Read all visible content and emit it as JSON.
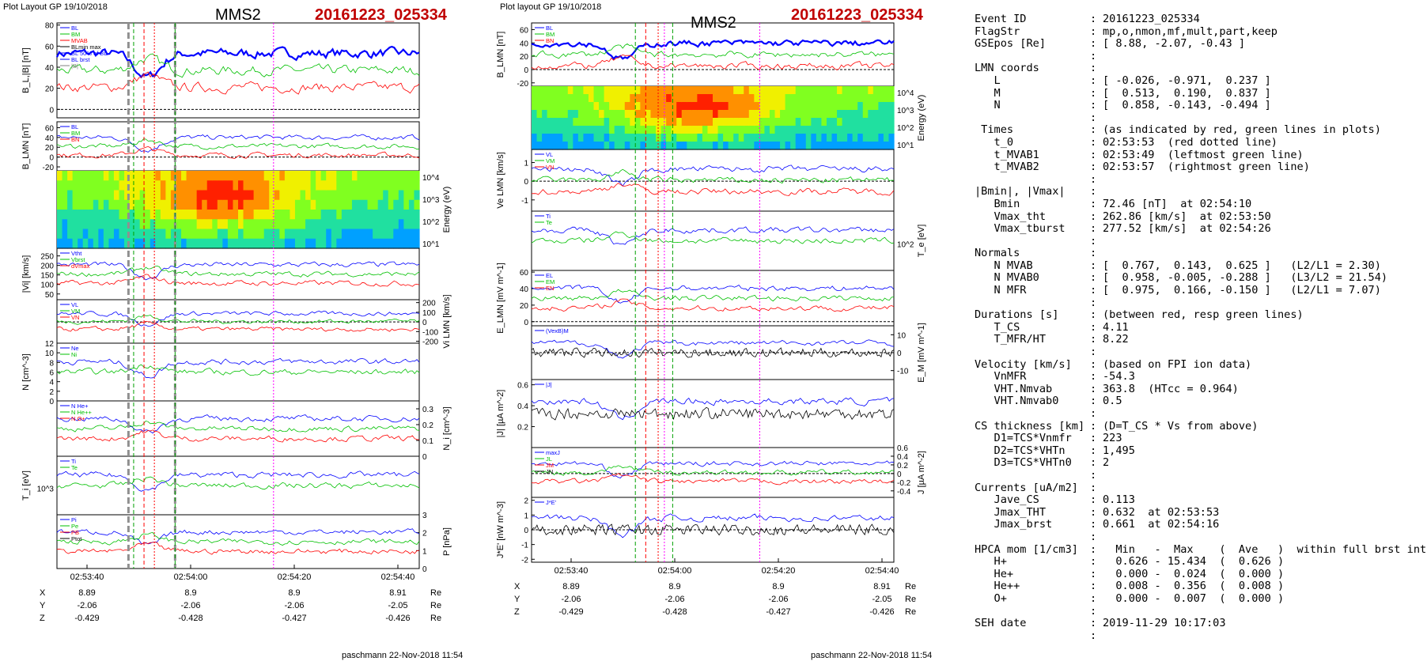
{
  "headers": {
    "left": {
      "title": "Plot Layout GP 19/10/2018",
      "sat": "MMS2",
      "event": "20161223_025334",
      "footer": "paschmann 22-Nov-2018 11:54"
    },
    "middle": {
      "title": "Plot layout GP 19/10/2018",
      "sat": "MMS2",
      "event": "20161223_025334",
      "footer": "paschmann 22-Nov-2018 11:54"
    }
  },
  "chart_data": [
    {
      "type": "line",
      "id": "left-stack",
      "x_ticks": [
        "02:53:40",
        "02:54:00",
        "02:54:20",
        "02:54:40"
      ],
      "markers": {
        "red_dotted": "02:53:53",
        "green_dashed": [
          "02:53:49",
          "02:53:57"
        ],
        "gray_dashed": [
          "02:53:48",
          "02:53:57"
        ],
        "magenta_dotted": "02:54:16"
      },
      "panels": [
        {
          "ylabel": "B_L,|B| [nT]",
          "ylim": [
            -8,
            82
          ],
          "yticks": [
            0,
            20,
            40,
            60,
            80
          ],
          "legend": [
            "BL",
            "BM",
            "MVAB",
            "BLmin max",
            "BL 50% of BL",
            "BL brst",
            "|B|"
          ]
        },
        {
          "ylabel": "B_LMN [nT]",
          "ylim": [
            -28,
            72
          ],
          "yticks": [
            -20,
            0,
            20,
            40,
            60
          ],
          "legend": [
            "BL",
            "BM",
            "BN"
          ]
        },
        {
          "ylabel": "Energy (eV)",
          "type": "heatmap",
          "yticks": [
            "10^4",
            "10^3",
            "10^2",
            "10^1"
          ]
        },
        {
          "ylabel": "|Vi| [km/s]",
          "ylim": [
            20,
            290
          ],
          "yticks": [
            50,
            100,
            150,
            200,
            250
          ],
          "legend": [
            "Vtht",
            "Vbrst",
            "dVmax"
          ]
        },
        {
          "ylabel": "Vi LMN [km/s]",
          "ylim": [
            -220,
            230
          ],
          "yticks": [
            -200,
            -100,
            0,
            100,
            200
          ],
          "legend": [
            "VL",
            "VM",
            "VN"
          ]
        },
        {
          "ylabel": "N [cm^-3]",
          "ylim": [
            0,
            12
          ],
          "yticks": [
            0,
            2,
            4,
            6,
            8,
            10,
            12
          ],
          "legend": [
            "Ne",
            "Ni"
          ]
        },
        {
          "ylabel": "N_i [cm^-3]",
          "ylim": [
            0,
            0.35
          ],
          "yticks": [
            0,
            0.1,
            0.2,
            0.3
          ],
          "legend": [
            "N He+",
            "N He++",
            "N O+"
          ]
        },
        {
          "ylabel": "T_i [eV]",
          "yticks": [
            "10^3"
          ],
          "legend": [
            "Ti",
            "Te"
          ]
        },
        {
          "ylabel": "P [nPa]",
          "ylim": [
            0,
            3
          ],
          "yticks": [
            0,
            1,
            2,
            3
          ],
          "legend": [
            "Pi",
            "Pe",
            "PB",
            "Ptot"
          ]
        }
      ],
      "coords": {
        "X": [
          "8.89",
          "8.9",
          "8.9",
          "8.91"
        ],
        "Y": [
          "-2.06",
          "-2.06",
          "-2.06",
          "-2.05"
        ],
        "Z": [
          "-0.429",
          "-0.428",
          "-0.427",
          "-0.426"
        ],
        "unit": "Re"
      }
    },
    {
      "type": "line",
      "id": "middle-stack",
      "x_ticks": [
        "02:53:40",
        "02:54:00",
        "02:54:20",
        "02:54:40"
      ],
      "panels": [
        {
          "ylabel": "B_LMN [nT]",
          "ylim": [
            -25,
            70
          ],
          "yticks": [
            -20,
            0,
            20,
            40,
            60
          ],
          "legend": [
            "BL",
            "BM",
            "BN"
          ]
        },
        {
          "ylabel": "Energy (eV)",
          "type": "heatmap",
          "yticks": [
            "10^4",
            "10^3",
            "10^2",
            "10^1"
          ]
        },
        {
          "ylabel": "Ve LMN [km/s]",
          "scale": "x10^3",
          "ylim": [
            -1.6,
            1.7
          ],
          "yticks": [
            -1,
            0,
            1
          ],
          "legend": [
            "VL",
            "VM",
            "VN"
          ]
        },
        {
          "ylabel": "T_e [eV]",
          "yticks": [
            "10^2"
          ],
          "legend": [
            "Ti",
            "Te"
          ]
        },
        {
          "ylabel": "E_LMN [mV m^-1]",
          "ylim": [
            -5,
            62
          ],
          "yticks": [
            0,
            20,
            40,
            60
          ],
          "legend": [
            "EL",
            "EM",
            "EN"
          ]
        },
        {
          "ylabel": "E_M [mV m^-1]",
          "ylim": [
            -15,
            15
          ],
          "yticks": [
            -10,
            0,
            10
          ],
          "legend": [
            "(VexB)M"
          ]
        },
        {
          "ylabel": "|J| [µA m^-2]",
          "ylim": [
            0,
            0.65
          ],
          "yticks": [
            0.2,
            0.4,
            0.6
          ],
          "legend": [
            "|J|"
          ]
        },
        {
          "ylabel": "J [µA m^-2]",
          "ylim": [
            -0.55,
            0.6
          ],
          "yticks": [
            -0.4,
            -0.2,
            0,
            0.2,
            0.4,
            0.6
          ],
          "legend": [
            "maxJ",
            "JL",
            "JM",
            "JN"
          ]
        },
        {
          "ylabel": "J*E' [nW m^-3]",
          "ylim": [
            -2.2,
            2.2
          ],
          "yticks": [
            -2,
            -1,
            0,
            1,
            2
          ],
          "legend": [
            "J*E'"
          ]
        }
      ],
      "coords": {
        "X": [
          "8.89",
          "8.9",
          "8.9",
          "8.91"
        ],
        "Y": [
          "-2.06",
          "-2.06",
          "-2.06",
          "-2.05"
        ],
        "Z": [
          "-0.429",
          "-0.428",
          "-0.427",
          "-0.426"
        ],
        "unit": "Re"
      }
    }
  ],
  "info": {
    "rows": [
      {
        "k": "Event ID",
        "v": "20161223_025334"
      },
      {
        "k": "FlagStr",
        "v": "mp,o,nmon,mf,mult,part,keep"
      },
      {
        "k": "GSEpos [Re]",
        "v": "[ 8.88, -2.07, -0.43 ]"
      },
      {
        "k": "",
        "v": ""
      },
      {
        "k": "LMN coords",
        "v": ""
      },
      {
        "k": "   L",
        "v": "[ -0.026, -0.971,  0.237 ]"
      },
      {
        "k": "   M",
        "v": "[  0.513,  0.190,  0.837 ]"
      },
      {
        "k": "   N",
        "v": "[  0.858, -0.143, -0.494 ]"
      },
      {
        "k": "",
        "v": ""
      },
      {
        "k": " Times",
        "v": "(as indicated by red, green lines in plots)"
      },
      {
        "k": "   t_0",
        "v": "02:53:53  (red dotted line)"
      },
      {
        "k": "   t_MVAB1",
        "v": "02:53:49  (leftmost green line)"
      },
      {
        "k": "   t_MVAB2",
        "v": "02:53:57  (rightmost green line)"
      },
      {
        "k": "",
        "v": ""
      },
      {
        "k": "|Bmin|, |Vmax|",
        "v": ""
      },
      {
        "k": "   Bmin",
        "v": "72.46 [nT]  at 02:54:10"
      },
      {
        "k": "   Vmax_tht",
        "v": "262.86 [km/s]  at 02:53:50"
      },
      {
        "k": "   Vmax_tburst",
        "v": "277.52 [km/s]  at 02:54:26"
      },
      {
        "k": "",
        "v": ""
      },
      {
        "k": "Normals",
        "v": ""
      },
      {
        "k": "   N MVAB",
        "v": "[  0.767,  0.143,  0.625 ]   (L2/L1 = 2.30)"
      },
      {
        "k": "   N MVAB0",
        "v": "[  0.958, -0.005, -0.288 ]   (L3/L2 = 21.54)"
      },
      {
        "k": "   N MFR",
        "v": "[  0.975,  0.166, -0.150 ]   (L2/L1 = 7.07)"
      },
      {
        "k": "",
        "v": ""
      },
      {
        "k": "Durations [s]",
        "v": "(between red, resp green lines)"
      },
      {
        "k": "   T_CS",
        "v": "4.11"
      },
      {
        "k": "   T_MFR/HT",
        "v": "8.22"
      },
      {
        "k": "",
        "v": ""
      },
      {
        "k": "Velocity [km/s]",
        "v": "(based on FPI ion data)"
      },
      {
        "k": "   VnMFR",
        "v": "-54.3"
      },
      {
        "k": "   VHT.Nmvab",
        "v": "363.8  (HTcc = 0.964)"
      },
      {
        "k": "   VHT.Nmvab0",
        "v": "0.5"
      },
      {
        "k": "",
        "v": ""
      },
      {
        "k": "CS thickness [km]",
        "v": "(D=T_CS * Vs from above)"
      },
      {
        "k": "   D1=TCS*Vnmfr",
        "v": "223"
      },
      {
        "k": "   D2=TCS*VHTn",
        "v": "1,495"
      },
      {
        "k": "   D3=TCS*VHTn0",
        "v": "2"
      },
      {
        "k": "",
        "v": ""
      },
      {
        "k": "Currents [uA/m2]",
        "v": ""
      },
      {
        "k": "   Jave_CS",
        "v": "0.113"
      },
      {
        "k": "   Jmax_THT",
        "v": "0.632  at 02:53:53"
      },
      {
        "k": "   Jmax_brst",
        "v": "0.661  at 02:54:16"
      },
      {
        "k": "",
        "v": ""
      },
      {
        "k": "HPCA mom [1/cm3]",
        "v": "  Min   -  Max    (  Ave   )  within full brst int"
      },
      {
        "k": "   H+",
        "v": "  0.626 - 15.434  (  0.626 )"
      },
      {
        "k": "   He+",
        "v": "  0.000 -  0.024  (  0.000 )"
      },
      {
        "k": "   He++",
        "v": "  0.008 -  0.356  (  0.008 )"
      },
      {
        "k": "   O+",
        "v": "  0.000 -  0.007  (  0.000 )"
      },
      {
        "k": "",
        "v": ""
      },
      {
        "k": "SEH date",
        "v": "2019-11-29 10:17:03"
      },
      {
        "k": "",
        "v": ""
      }
    ]
  }
}
